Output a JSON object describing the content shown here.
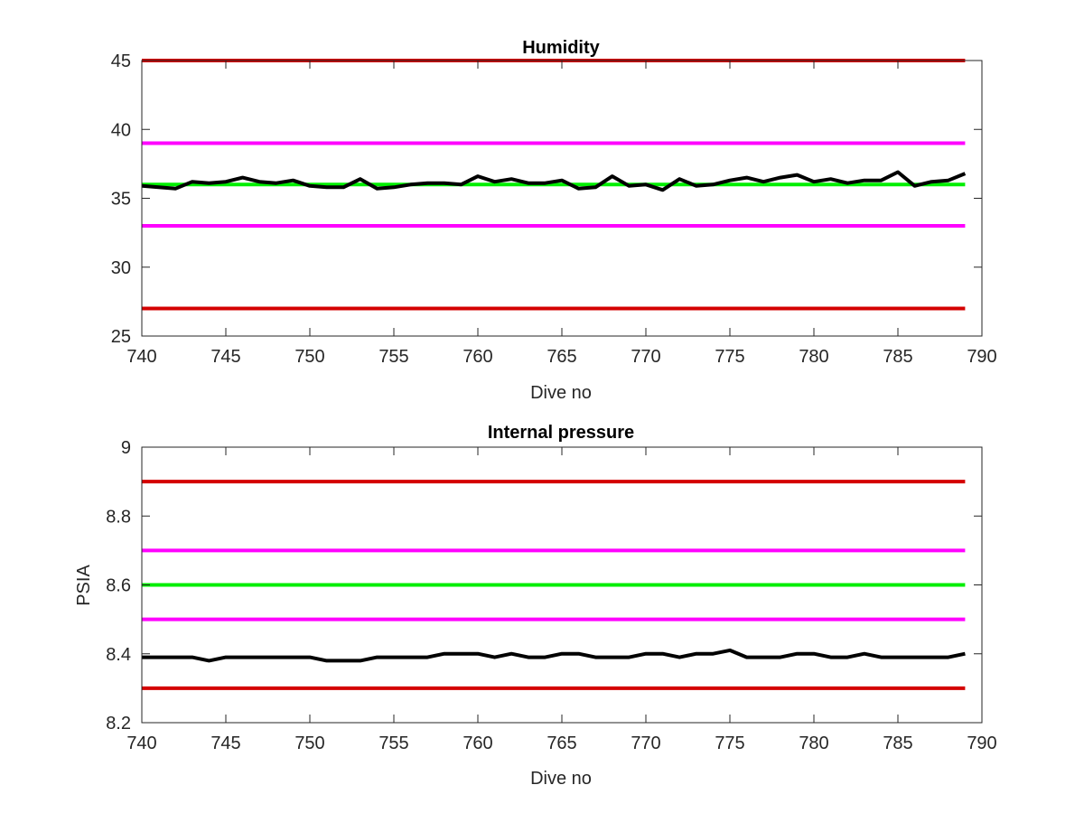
{
  "chart_data": [
    {
      "type": "line",
      "title": "Humidity",
      "xlabel": "Dive no",
      "ylabel": "",
      "xlim": [
        740,
        790
      ],
      "ylim": [
        25,
        45
      ],
      "xticks": [
        740,
        745,
        750,
        755,
        760,
        765,
        770,
        775,
        780,
        785,
        790
      ],
      "yticks": [
        25,
        30,
        35,
        40,
        45
      ],
      "grid": false,
      "series": [
        {
          "role": "upper-limit",
          "color": "#d40000",
          "x": [
            740,
            789
          ],
          "y": [
            45,
            45
          ]
        },
        {
          "role": "upper-warning",
          "color": "#ff00ff",
          "x": [
            740,
            789
          ],
          "y": [
            39,
            39
          ]
        },
        {
          "role": "nominal",
          "color": "#00ee00",
          "x": [
            740,
            789
          ],
          "y": [
            36,
            36
          ]
        },
        {
          "role": "lower-warning",
          "color": "#ff00ff",
          "x": [
            740,
            789
          ],
          "y": [
            33,
            33
          ]
        },
        {
          "role": "lower-limit",
          "color": "#d40000",
          "x": [
            740,
            789
          ],
          "y": [
            27,
            27
          ]
        },
        {
          "role": "measured",
          "color": "#000000",
          "x": [
            740,
            741,
            742,
            743,
            744,
            745,
            746,
            747,
            748,
            749,
            750,
            751,
            752,
            753,
            754,
            755,
            756,
            757,
            758,
            759,
            760,
            761,
            762,
            763,
            764,
            765,
            766,
            767,
            768,
            769,
            770,
            771,
            772,
            773,
            774,
            775,
            776,
            777,
            778,
            779,
            780,
            781,
            782,
            783,
            784,
            785,
            786,
            787,
            788,
            789
          ],
          "y": [
            35.9,
            35.8,
            35.7,
            36.2,
            36.1,
            36.2,
            36.5,
            36.2,
            36.1,
            36.3,
            35.9,
            35.8,
            35.8,
            36.4,
            35.7,
            35.8,
            36.0,
            36.1,
            36.1,
            36.0,
            36.6,
            36.2,
            36.4,
            36.1,
            36.1,
            36.3,
            35.7,
            35.8,
            36.6,
            35.9,
            36.0,
            35.6,
            36.4,
            35.9,
            36.0,
            36.3,
            36.5,
            36.2,
            36.5,
            36.7,
            36.2,
            36.4,
            36.1,
            36.3,
            36.3,
            36.9,
            35.9,
            36.2,
            36.3,
            36.8
          ]
        }
      ]
    },
    {
      "type": "line",
      "title": "Internal pressure",
      "xlabel": "Dive no",
      "ylabel": "PSIA",
      "xlim": [
        740,
        790
      ],
      "ylim": [
        8.2,
        9.0
      ],
      "xticks": [
        740,
        745,
        750,
        755,
        760,
        765,
        770,
        775,
        780,
        785,
        790
      ],
      "yticks": [
        8.2,
        8.4,
        8.6,
        8.8,
        9.0
      ],
      "yticklabels": [
        "8.2",
        "8.4",
        "8.6",
        "8.8",
        "9"
      ],
      "grid": false,
      "series": [
        {
          "role": "upper-limit",
          "color": "#d40000",
          "x": [
            740,
            789
          ],
          "y": [
            8.9,
            8.9
          ]
        },
        {
          "role": "upper-warning",
          "color": "#ff00ff",
          "x": [
            740,
            789
          ],
          "y": [
            8.7,
            8.7
          ]
        },
        {
          "role": "nominal",
          "color": "#00ee00",
          "x": [
            740,
            789
          ],
          "y": [
            8.6,
            8.6
          ]
        },
        {
          "role": "lower-warning",
          "color": "#ff00ff",
          "x": [
            740,
            789
          ],
          "y": [
            8.5,
            8.5
          ]
        },
        {
          "role": "lower-limit",
          "color": "#d40000",
          "x": [
            740,
            789
          ],
          "y": [
            8.3,
            8.3
          ]
        },
        {
          "role": "measured",
          "color": "#000000",
          "x": [
            740,
            741,
            742,
            743,
            744,
            745,
            746,
            747,
            748,
            749,
            750,
            751,
            752,
            753,
            754,
            755,
            756,
            757,
            758,
            759,
            760,
            761,
            762,
            763,
            764,
            765,
            766,
            767,
            768,
            769,
            770,
            771,
            772,
            773,
            774,
            775,
            776,
            777,
            778,
            779,
            780,
            781,
            782,
            783,
            784,
            785,
            786,
            787,
            788,
            789
          ],
          "y": [
            8.39,
            8.39,
            8.39,
            8.39,
            8.38,
            8.39,
            8.39,
            8.39,
            8.39,
            8.39,
            8.39,
            8.38,
            8.38,
            8.38,
            8.39,
            8.39,
            8.39,
            8.39,
            8.4,
            8.4,
            8.4,
            8.39,
            8.4,
            8.39,
            8.39,
            8.4,
            8.4,
            8.39,
            8.39,
            8.39,
            8.4,
            8.4,
            8.39,
            8.4,
            8.4,
            8.41,
            8.39,
            8.39,
            8.39,
            8.4,
            8.4,
            8.39,
            8.39,
            8.4,
            8.39,
            8.39,
            8.39,
            8.39,
            8.39,
            8.4
          ]
        }
      ]
    }
  ]
}
